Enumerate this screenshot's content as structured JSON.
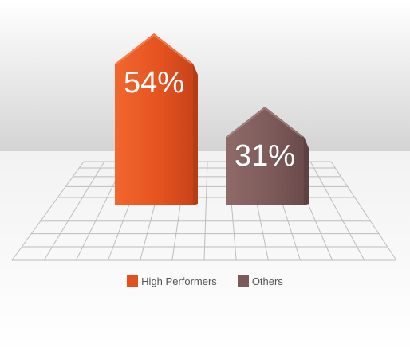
{
  "chart_data": {
    "type": "bar",
    "categories": [
      "High Performers",
      "Others"
    ],
    "values": [
      54,
      31
    ],
    "value_labels": [
      "54%",
      "31%"
    ],
    "ylim": [
      0,
      60
    ],
    "legend": [
      {
        "name": "High Performers",
        "color": "#e2501f"
      },
      {
        "name": "Others",
        "color": "#7d5a5a"
      }
    ],
    "legend_position": "bottom-center",
    "grid": true
  }
}
